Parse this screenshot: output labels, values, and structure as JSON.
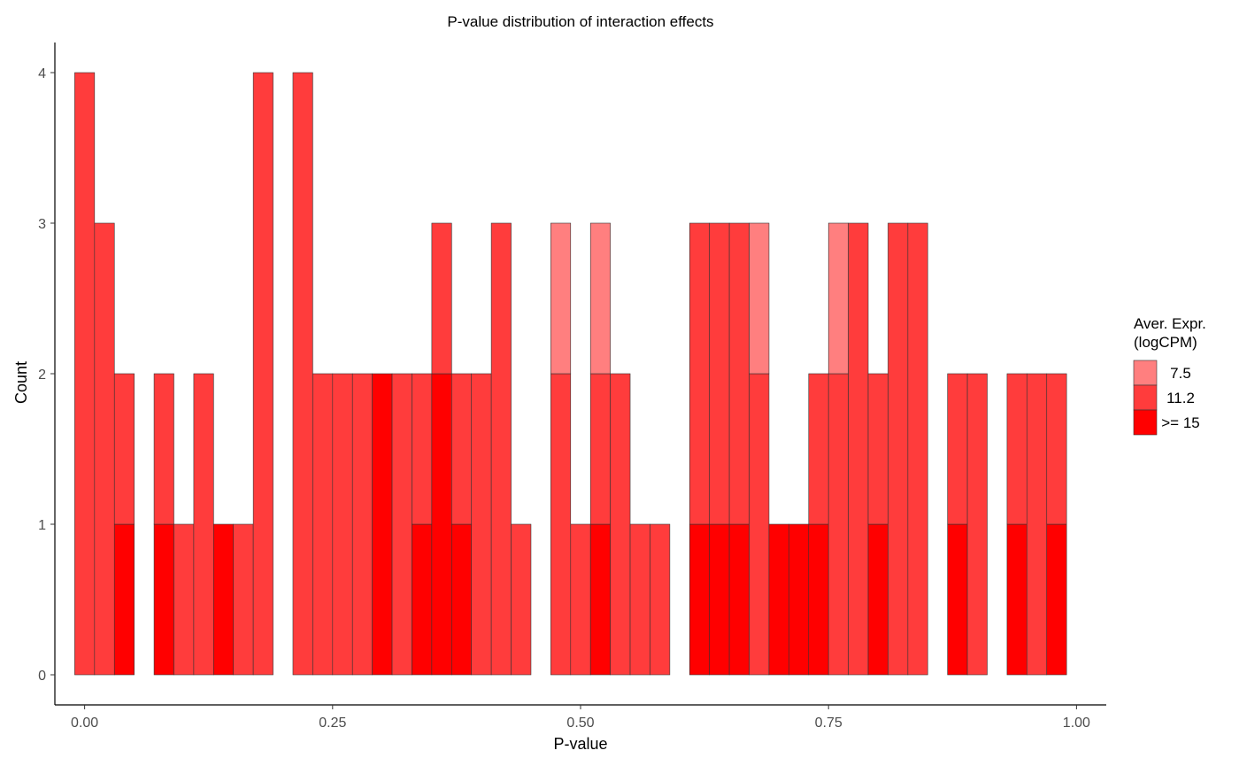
{
  "chart_data": {
    "type": "bar",
    "subtype": "stacked-histogram",
    "title": "P-value distribution of interaction effects",
    "xlabel": "P-value",
    "ylabel": "Count",
    "xlim": [
      -0.03,
      1.03
    ],
    "ylim": [
      -0.2,
      4.2
    ],
    "x_ticks": [
      "0.00",
      "0.25",
      "0.50",
      "0.75",
      "1.00"
    ],
    "x_tick_values": [
      0,
      0.25,
      0.5,
      0.75,
      1.0
    ],
    "y_ticks": [
      "0",
      "1",
      "2",
      "3",
      "4"
    ],
    "y_tick_values": [
      0,
      1,
      2,
      3,
      4
    ],
    "grid": false,
    "legend_position": "right",
    "legend_title": [
      "Aver. Expr.",
      "(logCPM)"
    ],
    "bin_width": 0.02,
    "bin_starts": [
      -0.01,
      0.01,
      0.03,
      0.05,
      0.07,
      0.09,
      0.11,
      0.13,
      0.15,
      0.17,
      0.19,
      0.21,
      0.23,
      0.25,
      0.27,
      0.29,
      0.31,
      0.33,
      0.35,
      0.37,
      0.39,
      0.41,
      0.43,
      0.45,
      0.47,
      0.49,
      0.51,
      0.53,
      0.55,
      0.57,
      0.59,
      0.61,
      0.63,
      0.65,
      0.67,
      0.69,
      0.71,
      0.73,
      0.75,
      0.77,
      0.79,
      0.81,
      0.83,
      0.85,
      0.87,
      0.89,
      0.91,
      0.93,
      0.95,
      0.97
    ],
    "series": [
      {
        "name": ">= 15",
        "color": "#ff0000",
        "values": [
          0,
          0,
          1,
          0,
          1,
          0,
          0,
          1,
          0,
          0,
          0,
          0,
          0,
          0,
          0,
          2,
          0,
          1,
          2,
          1,
          0,
          0,
          0,
          0,
          0,
          0,
          1,
          0,
          0,
          0,
          0,
          1,
          1,
          1,
          0,
          1,
          1,
          1,
          0,
          0,
          1,
          0,
          0,
          0,
          1,
          0,
          0,
          1,
          0,
          1
        ]
      },
      {
        "name": "11.2",
        "color": "#ff3c3c",
        "values": [
          4,
          3,
          1,
          0,
          1,
          1,
          2,
          0,
          1,
          4,
          0,
          4,
          2,
          2,
          2,
          0,
          2,
          1,
          1,
          1,
          2,
          3,
          1,
          0,
          2,
          1,
          1,
          2,
          1,
          1,
          0,
          2,
          2,
          2,
          2,
          0,
          0,
          1,
          2,
          3,
          1,
          3,
          3,
          0,
          1,
          2,
          0,
          1,
          2,
          1
        ]
      },
      {
        "name": "7.5",
        "color": "#ff7f7f",
        "values": [
          0,
          0,
          0,
          0,
          0,
          0,
          0,
          0,
          0,
          0,
          0,
          0,
          0,
          0,
          0,
          0,
          0,
          0,
          0,
          0,
          0,
          0,
          0,
          0,
          1,
          0,
          1,
          0,
          0,
          0,
          0,
          0,
          0,
          0,
          1,
          0,
          0,
          0,
          1,
          0,
          0,
          0,
          0,
          0,
          0,
          0,
          0,
          0,
          0,
          0
        ]
      }
    ],
    "legend_order": [
      "7.5",
      "11.2",
      ">= 15"
    ]
  }
}
